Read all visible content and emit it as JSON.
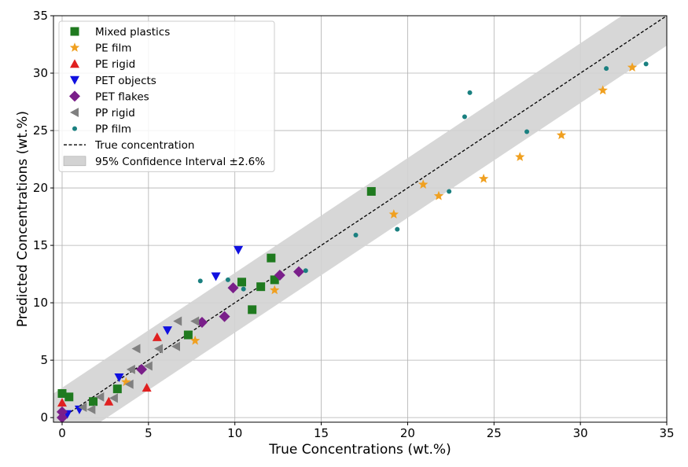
{
  "chart_data": {
    "type": "scatter",
    "title": "",
    "xlabel": "True Concentrations (wt.%)",
    "ylabel": "Predicted Concentrations (wt.%)",
    "xlim": [
      0,
      35
    ],
    "ylim": [
      0,
      35
    ],
    "xticks": [
      0,
      5,
      10,
      15,
      20,
      25,
      30,
      35
    ],
    "yticks": [
      0,
      5,
      10,
      15,
      20,
      25,
      30,
      35
    ],
    "grid": true,
    "legend_position": "top-left",
    "confidence_interval": {
      "label": "95% Confidence Interval ±2.6%",
      "half_width": 2.6,
      "color": "#d3d3d3"
    },
    "reference_line": {
      "label": "True concentration",
      "style": "dashed",
      "color": "#000000"
    },
    "series": [
      {
        "name": "Mixed plastics",
        "marker": "square",
        "color": "#1f7a1f",
        "points": [
          [
            0,
            2.1
          ],
          [
            0.4,
            1.8
          ],
          [
            1.8,
            1.4
          ],
          [
            3.2,
            2.5
          ],
          [
            7.3,
            7.2
          ],
          [
            10.4,
            11.8
          ],
          [
            11,
            9.4
          ],
          [
            11.5,
            11.4
          ],
          [
            12.1,
            13.9
          ],
          [
            12.3,
            12
          ],
          [
            17.9,
            19.7
          ]
        ]
      },
      {
        "name": "PE film",
        "marker": "star",
        "color": "#f0a020",
        "points": [
          [
            3.7,
            3.1
          ],
          [
            7.7,
            6.7
          ],
          [
            12.3,
            11.1
          ],
          [
            19.2,
            17.7
          ],
          [
            20.9,
            20.3
          ],
          [
            21.8,
            19.3
          ],
          [
            24.4,
            20.8
          ],
          [
            26.5,
            22.7
          ],
          [
            28.9,
            24.6
          ],
          [
            31.3,
            28.5
          ],
          [
            33,
            30.5
          ]
        ]
      },
      {
        "name": "PE rigid",
        "marker": "triangle-up",
        "color": "#e02020",
        "points": [
          [
            0,
            1.3
          ],
          [
            2.7,
            1.4
          ],
          [
            4.9,
            2.6
          ],
          [
            5.5,
            7
          ]
        ]
      },
      {
        "name": "PET objects",
        "marker": "triangle-down",
        "color": "#1010e0",
        "points": [
          [
            0.3,
            0.3
          ],
          [
            1,
            0.7
          ],
          [
            3.3,
            3.5
          ],
          [
            6.1,
            7.6
          ],
          [
            8.9,
            12.3
          ],
          [
            10.2,
            14.6
          ]
        ]
      },
      {
        "name": "PET flakes",
        "marker": "diamond",
        "color": "#7a1f8a",
        "points": [
          [
            0,
            0
          ],
          [
            0,
            0.5
          ],
          [
            4.6,
            4.2
          ],
          [
            8.1,
            8.3
          ],
          [
            9.4,
            8.8
          ],
          [
            9.9,
            11.3
          ],
          [
            12.6,
            12.4
          ],
          [
            13.7,
            12.7
          ]
        ]
      },
      {
        "name": "PP rigid",
        "marker": "triangle-left",
        "color": "#808080",
        "points": [
          [
            1.2,
            0.9
          ],
          [
            1.7,
            0.7
          ],
          [
            2.2,
            1.8
          ],
          [
            3,
            1.7
          ],
          [
            3.9,
            2.9
          ],
          [
            4,
            4.2
          ],
          [
            4.3,
            6
          ],
          [
            5,
            4.5
          ],
          [
            5.6,
            6
          ],
          [
            6.6,
            6.2
          ],
          [
            6.7,
            8.4
          ],
          [
            7.7,
            8.4
          ]
        ]
      },
      {
        "name": "PP film",
        "marker": "dot",
        "color": "#1a8080",
        "points": [
          [
            8,
            11.9
          ],
          [
            9.6,
            12
          ],
          [
            10.5,
            11.2
          ],
          [
            14.1,
            12.8
          ],
          [
            17,
            15.9
          ],
          [
            19.4,
            16.4
          ],
          [
            22.4,
            19.7
          ],
          [
            23.3,
            26.2
          ],
          [
            23.6,
            28.3
          ],
          [
            26.9,
            24.9
          ],
          [
            31.5,
            30.4
          ],
          [
            33.8,
            30.8
          ]
        ]
      }
    ]
  }
}
